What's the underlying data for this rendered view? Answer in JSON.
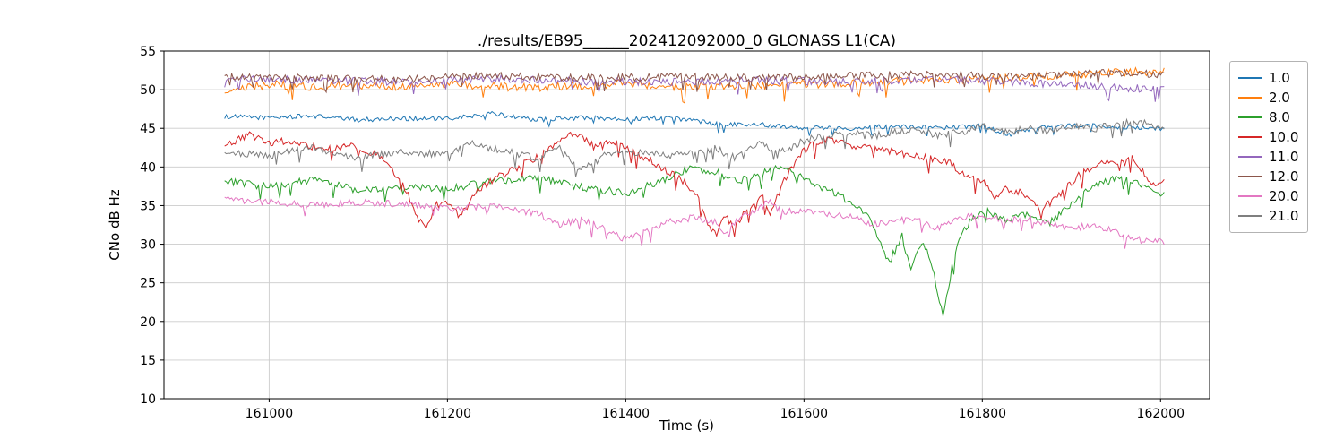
{
  "chart_data": {
    "type": "line",
    "title": "./results/EB95______202412092000_0 GLONASS L1(CA)",
    "xlabel": "Time (s)",
    "ylabel": "CNo dB Hz",
    "xlim": [
      160882,
      162055
    ],
    "ylim": [
      10,
      55
    ],
    "xticks": [
      161000,
      161200,
      161400,
      161600,
      161800,
      162000
    ],
    "yticks": [
      10,
      15,
      20,
      25,
      30,
      35,
      40,
      45,
      50,
      55
    ],
    "grid": true,
    "grid_color": "#cccccc",
    "legend_position": "outside-right",
    "x_start": 160950,
    "x_end": 162005,
    "series": [
      {
        "name": "1.0",
        "color": "#1f77b4",
        "noise": 0.3,
        "keypoints": [
          [
            160950,
            46.5
          ],
          [
            161000,
            46.4
          ],
          [
            161050,
            46.6
          ],
          [
            161100,
            46.1
          ],
          [
            161150,
            46.3
          ],
          [
            161200,
            46.2
          ],
          [
            161250,
            46.9
          ],
          [
            161300,
            46.1
          ],
          [
            161350,
            46.4
          ],
          [
            161400,
            46.2
          ],
          [
            161450,
            46.4
          ],
          [
            161500,
            45.6
          ],
          [
            161550,
            45.5
          ],
          [
            161600,
            45.1
          ],
          [
            161650,
            45.0
          ],
          [
            161700,
            45.3
          ],
          [
            161750,
            45.1
          ],
          [
            161800,
            45.3
          ],
          [
            161830,
            44.2
          ],
          [
            161860,
            45.0
          ],
          [
            161900,
            45.4
          ],
          [
            161950,
            45.2
          ],
          [
            162005,
            44.9
          ]
        ]
      },
      {
        "name": "2.0",
        "color": "#ff7f0e",
        "noise": 0.55,
        "keypoints": [
          [
            160950,
            49.9
          ],
          [
            161000,
            50.7
          ],
          [
            161050,
            50.4
          ],
          [
            161100,
            50.6
          ],
          [
            161150,
            50.3
          ],
          [
            161200,
            50.7
          ],
          [
            161250,
            50.4
          ],
          [
            161300,
            50.3
          ],
          [
            161350,
            50.6
          ],
          [
            161400,
            50.8
          ],
          [
            161450,
            50.4
          ],
          [
            161500,
            50.5
          ],
          [
            161550,
            50.6
          ],
          [
            161600,
            50.7
          ],
          [
            161650,
            50.9
          ],
          [
            161700,
            51.1
          ],
          [
            161750,
            51.2
          ],
          [
            161800,
            51.5
          ],
          [
            161850,
            51.6
          ],
          [
            161900,
            51.9
          ],
          [
            161950,
            52.3
          ],
          [
            162005,
            52.4
          ]
        ]
      },
      {
        "name": "8.0",
        "color": "#2ca02c",
        "noise": 0.5,
        "keypoints": [
          [
            160950,
            38.2
          ],
          [
            161000,
            37.4
          ],
          [
            161050,
            38.4
          ],
          [
            161100,
            36.9
          ],
          [
            161150,
            37.6
          ],
          [
            161200,
            37.1
          ],
          [
            161250,
            38.1
          ],
          [
            161300,
            38.7
          ],
          [
            161350,
            37.4
          ],
          [
            161400,
            36.6
          ],
          [
            161440,
            38.2
          ],
          [
            161470,
            39.8
          ],
          [
            161500,
            39.4
          ],
          [
            161525,
            38.1
          ],
          [
            161550,
            39.0
          ],
          [
            161575,
            40.1
          ],
          [
            161600,
            38.4
          ],
          [
            161625,
            37.1
          ],
          [
            161650,
            35.6
          ],
          [
            161675,
            33.2
          ],
          [
            161695,
            27.5
          ],
          [
            161710,
            31.0
          ],
          [
            161720,
            26.8
          ],
          [
            161732,
            30.2
          ],
          [
            161742,
            28.0
          ],
          [
            161756,
            20.5
          ],
          [
            161766,
            27.0
          ],
          [
            161776,
            31.5
          ],
          [
            161790,
            33.4
          ],
          [
            161805,
            34.4
          ],
          [
            161825,
            33.1
          ],
          [
            161850,
            34.0
          ],
          [
            161875,
            32.6
          ],
          [
            161900,
            35.4
          ],
          [
            161925,
            37.4
          ],
          [
            161950,
            38.6
          ],
          [
            161975,
            38.0
          ],
          [
            162005,
            36.2
          ]
        ]
      },
      {
        "name": "10.0",
        "color": "#d62728",
        "noise": 0.5,
        "keypoints": [
          [
            160950,
            42.6
          ],
          [
            160975,
            44.2
          ],
          [
            161000,
            43.1
          ],
          [
            161030,
            43.4
          ],
          [
            161060,
            42.2
          ],
          [
            161090,
            42.9
          ],
          [
            161120,
            41.6
          ],
          [
            161150,
            38.0
          ],
          [
            161165,
            33.8
          ],
          [
            161175,
            32.1
          ],
          [
            161188,
            35.0
          ],
          [
            161200,
            35.4
          ],
          [
            161215,
            33.6
          ],
          [
            161232,
            36.6
          ],
          [
            161255,
            38.6
          ],
          [
            161280,
            40.1
          ],
          [
            161305,
            41.6
          ],
          [
            161330,
            43.6
          ],
          [
            161345,
            44.4
          ],
          [
            161365,
            42.6
          ],
          [
            161385,
            43.1
          ],
          [
            161405,
            42.1
          ],
          [
            161425,
            41.0
          ],
          [
            161445,
            39.6
          ],
          [
            161465,
            38.1
          ],
          [
            161480,
            36.4
          ],
          [
            161492,
            32.6
          ],
          [
            161502,
            31.4
          ],
          [
            161512,
            33.6
          ],
          [
            161522,
            32.1
          ],
          [
            161540,
            35.1
          ],
          [
            161552,
            36.6
          ],
          [
            161562,
            34.1
          ],
          [
            161577,
            38.1
          ],
          [
            161592,
            41.1
          ],
          [
            161605,
            42.6
          ],
          [
            161625,
            43.6
          ],
          [
            161645,
            43.1
          ],
          [
            161665,
            42.6
          ],
          [
            161690,
            42.1
          ],
          [
            161715,
            41.6
          ],
          [
            161740,
            41.1
          ],
          [
            161765,
            40.4
          ],
          [
            161785,
            38.6
          ],
          [
            161805,
            37.9
          ],
          [
            161815,
            36.1
          ],
          [
            161825,
            37.4
          ],
          [
            161845,
            36.6
          ],
          [
            161865,
            34.6
          ],
          [
            161885,
            36.1
          ],
          [
            161905,
            38.6
          ],
          [
            161925,
            40.1
          ],
          [
            161945,
            41.0
          ],
          [
            161958,
            40.4
          ],
          [
            161968,
            41.4
          ],
          [
            161980,
            39.6
          ],
          [
            161992,
            37.6
          ],
          [
            162005,
            38.6
          ]
        ]
      },
      {
        "name": "11.0",
        "color": "#9467bd",
        "noise": 0.5,
        "keypoints": [
          [
            160950,
            51.4
          ],
          [
            161050,
            51.2
          ],
          [
            161150,
            51.0
          ],
          [
            161250,
            51.4
          ],
          [
            161350,
            51.1
          ],
          [
            161450,
            51.0
          ],
          [
            161550,
            51.2
          ],
          [
            161650,
            51.0
          ],
          [
            161750,
            51.4
          ],
          [
            161850,
            50.9
          ],
          [
            161950,
            50.3
          ],
          [
            162005,
            50.0
          ]
        ]
      },
      {
        "name": "12.0",
        "color": "#8c564b",
        "noise": 0.5,
        "keypoints": [
          [
            160950,
            51.7
          ],
          [
            161050,
            51.5
          ],
          [
            161150,
            51.3
          ],
          [
            161250,
            51.9
          ],
          [
            161350,
            51.5
          ],
          [
            161450,
            51.7
          ],
          [
            161550,
            51.5
          ],
          [
            161650,
            51.8
          ],
          [
            161750,
            52.0
          ],
          [
            161850,
            51.7
          ],
          [
            161950,
            52.2
          ],
          [
            162005,
            52.0
          ]
        ]
      },
      {
        "name": "20.0",
        "color": "#e377c2",
        "noise": 0.45,
        "keypoints": [
          [
            160950,
            35.7
          ],
          [
            161000,
            35.5
          ],
          [
            161050,
            35.1
          ],
          [
            161100,
            35.4
          ],
          [
            161150,
            35.2
          ],
          [
            161200,
            34.6
          ],
          [
            161250,
            34.9
          ],
          [
            161300,
            34.0
          ],
          [
            161325,
            32.6
          ],
          [
            161350,
            33.1
          ],
          [
            161375,
            32.1
          ],
          [
            161400,
            30.6
          ],
          [
            161425,
            31.6
          ],
          [
            161450,
            33.0
          ],
          [
            161475,
            33.4
          ],
          [
            161500,
            32.9
          ],
          [
            161512,
            31.1
          ],
          [
            161525,
            33.4
          ],
          [
            161548,
            34.4
          ],
          [
            161560,
            35.6
          ],
          [
            161575,
            34.1
          ],
          [
            161600,
            34.4
          ],
          [
            161625,
            34.0
          ],
          [
            161650,
            33.6
          ],
          [
            161675,
            32.6
          ],
          [
            161700,
            33.0
          ],
          [
            161725,
            33.2
          ],
          [
            161750,
            32.1
          ],
          [
            161775,
            33.4
          ],
          [
            161800,
            33.7
          ],
          [
            161825,
            33.0
          ],
          [
            161850,
            33.4
          ],
          [
            161875,
            32.6
          ],
          [
            161900,
            32.1
          ],
          [
            161925,
            32.4
          ],
          [
            161950,
            31.6
          ],
          [
            161975,
            30.6
          ],
          [
            162005,
            30.3
          ]
        ]
      },
      {
        "name": "21.0",
        "color": "#7f7f7f",
        "noise": 0.5,
        "keypoints": [
          [
            160950,
            41.8
          ],
          [
            161000,
            41.5
          ],
          [
            161050,
            42.4
          ],
          [
            161100,
            41.1
          ],
          [
            161150,
            42.0
          ],
          [
            161200,
            41.6
          ],
          [
            161225,
            43.4
          ],
          [
            161250,
            42.4
          ],
          [
            161300,
            41.1
          ],
          [
            161325,
            42.4
          ],
          [
            161350,
            39.6
          ],
          [
            161375,
            41.4
          ],
          [
            161400,
            42.0
          ],
          [
            161450,
            41.5
          ],
          [
            161500,
            42.4
          ],
          [
            161525,
            41.1
          ],
          [
            161550,
            42.9
          ],
          [
            161575,
            42.0
          ],
          [
            161600,
            43.4
          ],
          [
            161625,
            44.0
          ],
          [
            161650,
            44.4
          ],
          [
            161675,
            44.0
          ],
          [
            161700,
            44.5
          ],
          [
            161725,
            44.9
          ],
          [
            161750,
            44.1
          ],
          [
            161775,
            44.5
          ],
          [
            161800,
            45.4
          ],
          [
            161825,
            44.5
          ],
          [
            161850,
            45.0
          ],
          [
            161875,
            44.6
          ],
          [
            161900,
            45.4
          ],
          [
            161925,
            45.0
          ],
          [
            161950,
            45.5
          ],
          [
            161975,
            45.9
          ],
          [
            162005,
            45.1
          ]
        ]
      }
    ]
  }
}
